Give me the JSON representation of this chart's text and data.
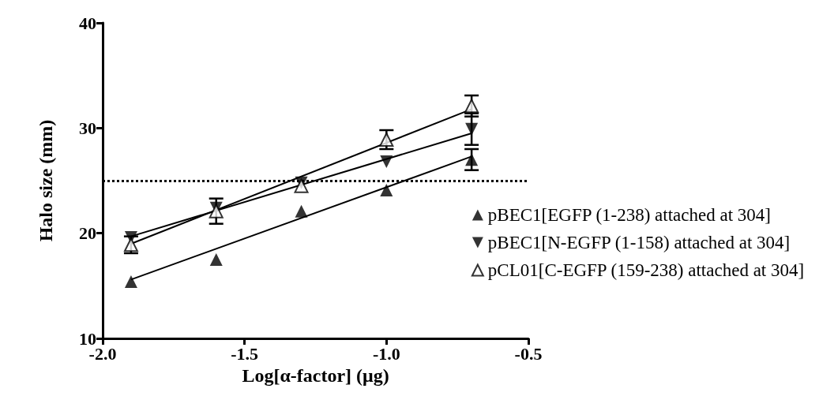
{
  "chart_data": {
    "type": "scatter",
    "xlabel": "Log[α-factor] (μg)",
    "ylabel": "Halo size (mm)",
    "xlim": [
      -2.0,
      -0.5
    ],
    "xticks": [
      {
        "value": -2,
        "label": "-2.0"
      },
      -1.5,
      {
        "value": -1,
        "label": "-1.0"
      },
      -0.5
    ],
    "ylim": [
      10,
      40
    ],
    "yticks": [
      10,
      20,
      30,
      40
    ],
    "grid": false,
    "legend": "bottom right",
    "ref_lines": [
      {
        "axis": "y",
        "value": 25,
        "label": null,
        "line_style": "dotted",
        "color": "#000000"
      }
    ],
    "series": [
      {
        "name": "pBEC1[EGFP (1-238) attached at 304]",
        "color": "#000000",
        "marker": "triangle",
        "x": [
          -1.9,
          -1.6,
          -1.3,
          -1.0,
          -0.7
        ],
        "values": [
          15.4,
          17.5,
          22.1,
          24.1,
          27.0
        ],
        "errors": [
          null,
          null,
          null,
          null,
          1
        ]
      },
      {
        "name": "pBEC1[N-EGFP (1-158) attached at 304]",
        "color": "#000000",
        "marker": "triangle-down",
        "x": [
          -1.9,
          -1.6,
          -1.3,
          -1.0,
          -0.7
        ],
        "values": [
          19.6,
          22.4,
          24.8,
          26.8,
          29.9
        ],
        "errors": [
          null,
          null,
          null,
          null,
          1.5
        ]
      },
      {
        "name": "pCL01[C-EGFP (159-238) attached at 304]",
        "color": "#000000",
        "marker": "triangle-open",
        "x": [
          -1.9,
          -1.6,
          -1.3,
          -1.0,
          -0.7
        ],
        "values": [
          18.9,
          22.1,
          24.5,
          28.9,
          32.1
        ],
        "errors": [
          0.8,
          1.2,
          null,
          0.9,
          1
        ]
      },
      {
        "type": "line",
        "color": "#000000",
        "x": [
          -1.9,
          -0.7
        ],
        "values": [
          15.6,
          27.3
        ]
      },
      {
        "type": "line",
        "color": "#000000",
        "x": [
          -1.9,
          -0.7
        ],
        "values": [
          19.7,
          29.5
        ]
      },
      {
        "type": "line",
        "color": "#000000",
        "x": [
          -1.9,
          -0.7
        ],
        "values": [
          19.0,
          31.8
        ]
      }
    ]
  }
}
